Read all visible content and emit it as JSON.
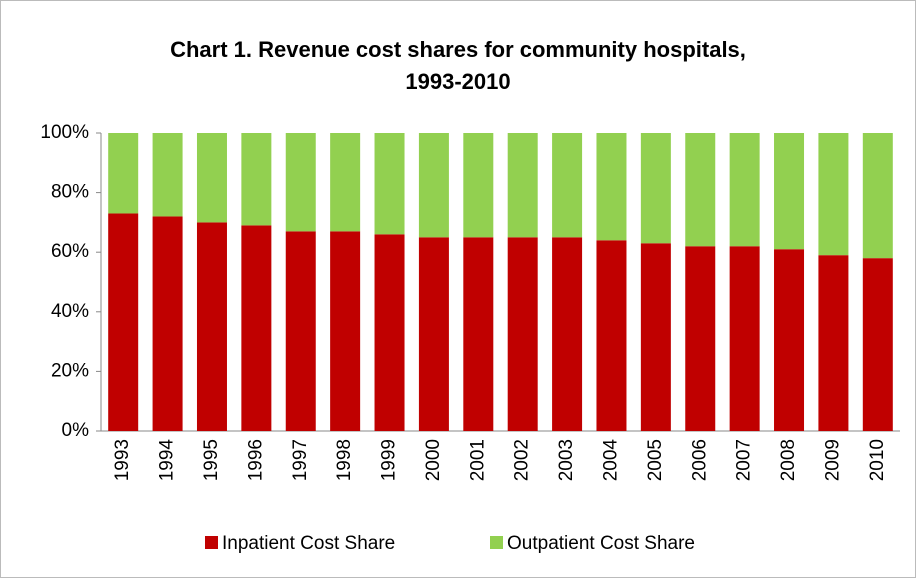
{
  "chart_data": {
    "type": "stacked_bar",
    "title": "Chart 1. Revenue cost shares for community hospitals, 1993-2010",
    "categories": [
      "1993",
      "1994",
      "1995",
      "1996",
      "1997",
      "1998",
      "1999",
      "2000",
      "2001",
      "2002",
      "2003",
      "2004",
      "2005",
      "2006",
      "2007",
      "2008",
      "2009",
      "2010"
    ],
    "series": [
      {
        "name": "Inpatient Cost Share",
        "color": "#c00000",
        "values": [
          73,
          72,
          70,
          69,
          67,
          67,
          66,
          65,
          65,
          65,
          65,
          64,
          63,
          62,
          62,
          61,
          59,
          58
        ]
      },
      {
        "name": "Outpatient Cost Share",
        "color": "#92d050",
        "values": [
          27,
          28,
          30,
          31,
          33,
          33,
          34,
          35,
          35,
          35,
          35,
          36,
          37,
          38,
          38,
          39,
          41,
          42
        ]
      }
    ],
    "ylim": [
      0,
      100
    ],
    "yticks": [
      {
        "value": 0,
        "label": "0%"
      },
      {
        "value": 20,
        "label": "20%"
      },
      {
        "value": 40,
        "label": "40%"
      },
      {
        "value": 60,
        "label": "60%"
      },
      {
        "value": 80,
        "label": "80%"
      },
      {
        "value": 100,
        "label": "100%"
      }
    ],
    "grid": false,
    "legend": "bottom"
  }
}
